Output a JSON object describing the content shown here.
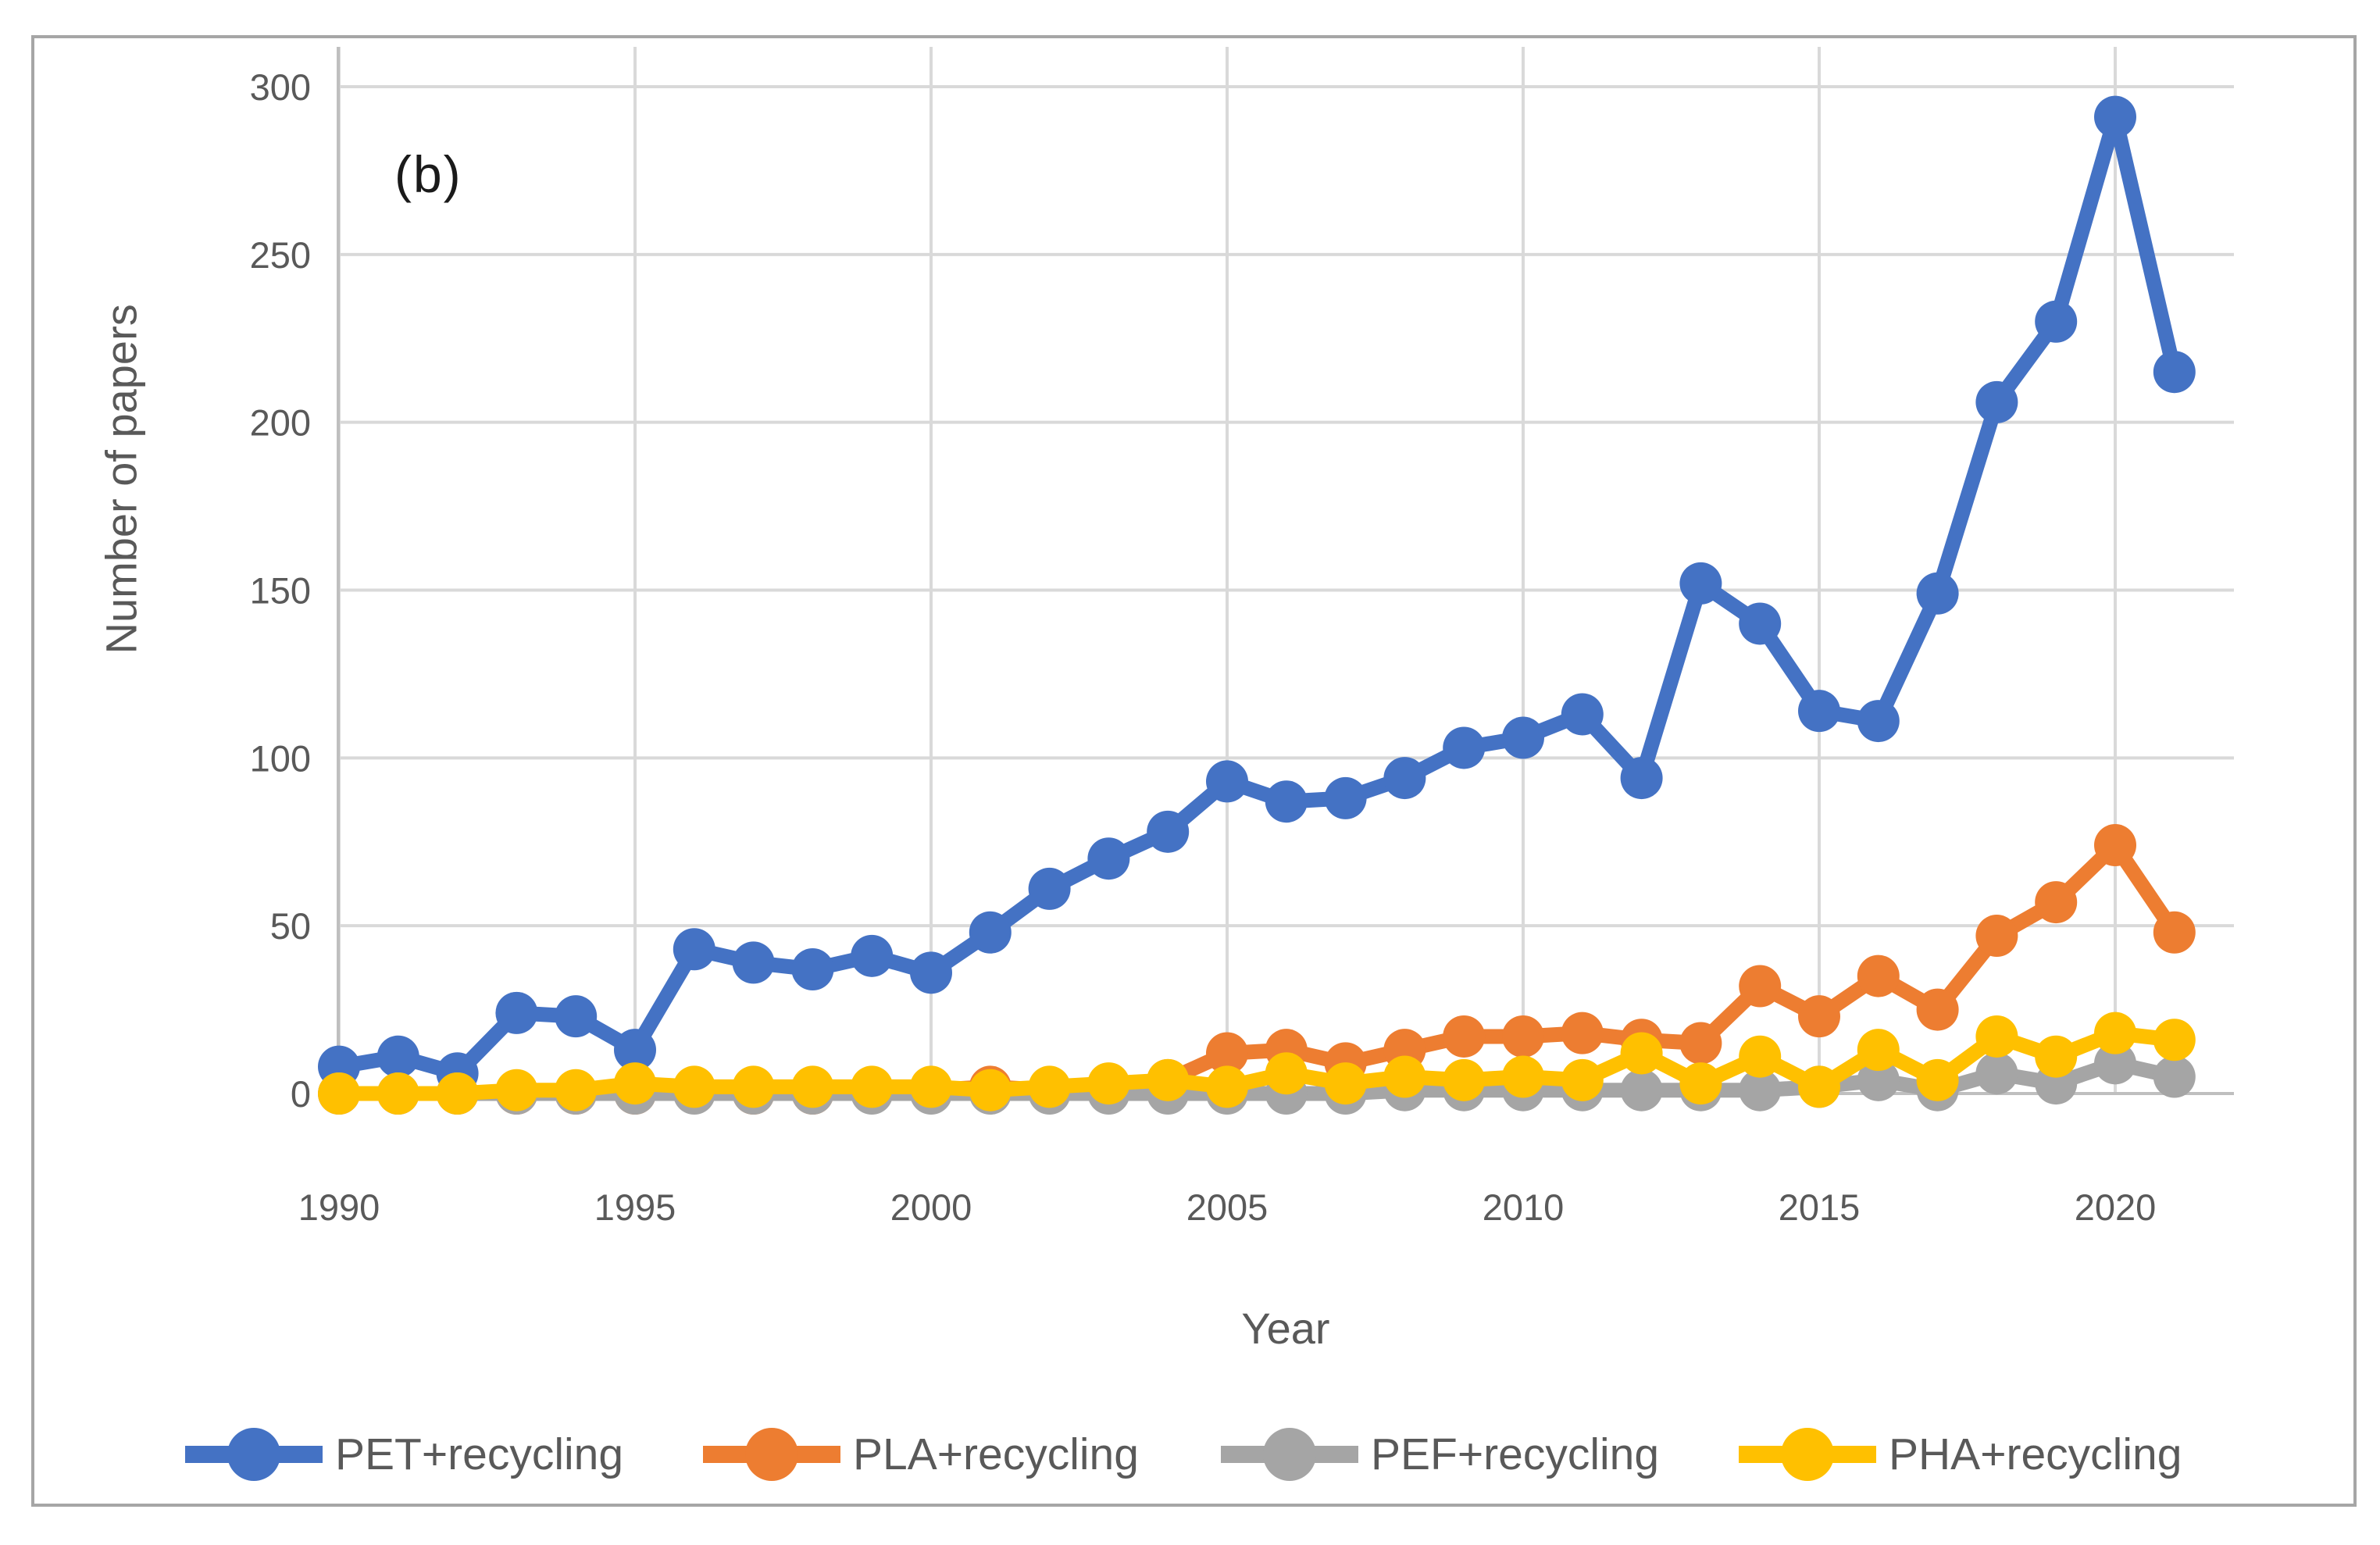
{
  "figure_label": "(b)",
  "axes": {
    "y_title": "Number of papers",
    "x_title": "Year",
    "y_ticks": [
      0,
      50,
      100,
      150,
      200,
      250,
      300
    ],
    "x_ticks": [
      1990,
      1995,
      2000,
      2005,
      2010,
      2015,
      2020
    ]
  },
  "colors": {
    "pet_blue": "#4472C4",
    "pla_orange": "#ED7D31",
    "pef_gray": "#A5A5A5",
    "pha_yellow": "#FFC000",
    "gridline": "#D9D9D9",
    "axis_line": "#BFBFBF",
    "tick_text": "#595959",
    "frame_border": "#A6A6A6"
  },
  "legend": {
    "entries": [
      {
        "label": "PET+recycling",
        "color": "#4472C4"
      },
      {
        "label": "PLA+recycling",
        "color": "#ED7D31"
      },
      {
        "label": "PEF+recycling",
        "color": "#A5A5A5"
      },
      {
        "label": "PHA+recycling",
        "color": "#FFC000"
      }
    ]
  },
  "chart_data": {
    "type": "line",
    "title": "",
    "xlabel": "Year",
    "ylabel": "Number of papers",
    "xlim": [
      1990,
      2021
    ],
    "ylim": [
      0,
      300
    ],
    "y_tick_step": 50,
    "x_tick_step": 5,
    "grid": true,
    "legend_position": "bottom",
    "x": [
      1990,
      1991,
      1992,
      1993,
      1994,
      1995,
      1996,
      1997,
      1998,
      1999,
      2000,
      2001,
      2002,
      2003,
      2004,
      2005,
      2006,
      2007,
      2008,
      2009,
      2010,
      2011,
      2012,
      2013,
      2014,
      2015,
      2016,
      2017,
      2018,
      2019,
      2020,
      2021
    ],
    "series": [
      {
        "name": "PET+recycling",
        "color": "#4472C4",
        "values": [
          8,
          11,
          6,
          24,
          23,
          13,
          43,
          39,
          37,
          41,
          36,
          48,
          61,
          70,
          78,
          93,
          87,
          88,
          94,
          103,
          106,
          113,
          94,
          152,
          140,
          114,
          111,
          149,
          206,
          230,
          291,
          215
        ]
      },
      {
        "name": "PLA+recycling",
        "color": "#ED7D31",
        "values": [
          0,
          0,
          0,
          0,
          0,
          0,
          1,
          0,
          0,
          1,
          1,
          2,
          1,
          2,
          4,
          12,
          13,
          9,
          13,
          17,
          17,
          18,
          16,
          15,
          32,
          23,
          35,
          25,
          47,
          57,
          74,
          48
        ]
      },
      {
        "name": "PEF+recycling",
        "color": "#A5A5A5",
        "values": [
          0,
          0,
          0,
          0,
          0,
          0,
          0,
          0,
          0,
          0,
          0,
          0,
          0,
          0,
          0,
          0,
          0,
          0,
          1,
          1,
          1,
          1,
          1,
          1,
          1,
          2,
          4,
          1,
          6,
          3,
          9,
          5
        ]
      },
      {
        "name": "PHA+recycling",
        "color": "#FFC000",
        "values": [
          0,
          0,
          0,
          1,
          1,
          3,
          2,
          2,
          2,
          2,
          2,
          1,
          2,
          3,
          4,
          2,
          6,
          3,
          5,
          4,
          5,
          4,
          12,
          3,
          11,
          2,
          13,
          4,
          17,
          11,
          18,
          16
        ]
      }
    ]
  }
}
